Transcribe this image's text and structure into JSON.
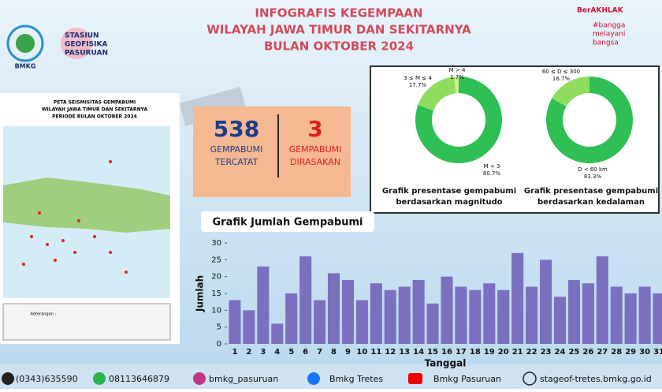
{
  "header": {
    "title_lines": [
      "INFOGRAFIS KEGEMPAAN",
      "WILAYAH JAWA TIMUR DAN SEKITARNYA",
      "BULAN OKTOBER 2024"
    ],
    "station_lines": [
      "STASIUN",
      "GEOFISIKA",
      "PASURUAN"
    ],
    "bmkg": "BMKG",
    "berakhlak": "BerAKHLAK",
    "slogan": [
      "#bangga",
      "melayani",
      "bangsa"
    ]
  },
  "map": {
    "title_lines": [
      "PETA SEISMISITAS GEMPABUMI",
      "WILAYAH JAWA TIMUR DAN SEKITARNYA",
      "PERIODE BULAN OKTOBER 2024"
    ],
    "legend": "Keterangan :"
  },
  "stats": [
    {
      "value": 538,
      "label": [
        "GEMPABUMI",
        "TERCATAT"
      ]
    },
    {
      "value": 3,
      "label": [
        "GEMPABUMI",
        "DIRASAKAN"
      ]
    }
  ],
  "chart_data": [
    {
      "type": "bar",
      "title": "Grafik Jumlah Gempabumi",
      "x_label": "Tanggal",
      "y_label": "Jumlah",
      "color": "#7b70bf",
      "categories": [
        "1",
        "2",
        "3",
        "4",
        "5",
        "6",
        "7",
        "8",
        "9",
        "10",
        "11",
        "12",
        "13",
        "14",
        "15",
        "16",
        "17",
        "18",
        "19",
        "20",
        "21",
        "22",
        "23",
        "24",
        "25",
        "26",
        "27",
        "28",
        "29",
        "30",
        "31"
      ],
      "values": [
        13,
        10,
        23,
        6,
        15,
        26,
        13,
        21,
        19,
        13,
        18,
        16,
        17,
        19,
        12,
        20,
        17,
        16,
        18,
        16,
        27,
        17,
        25,
        14,
        19,
        18,
        26,
        17,
        15,
        17,
        15
      ],
      "ylim": [
        0,
        30
      ],
      "yticks": [
        0,
        5,
        10,
        15,
        20,
        25,
        30
      ]
    },
    {
      "type": "pie",
      "title": [
        "Grafik presentase gempabumi",
        "berdasarkan magnitudo"
      ],
      "categories": [
        "M < 3",
        "3 ≤ M ≤ 4",
        "M > 4"
      ],
      "values": [
        80.7,
        17.7,
        1.7
      ],
      "value_labels": [
        "80.7%",
        "17.7%",
        "1.7%"
      ],
      "colors": [
        "#2fbf55",
        "#8fdc5e",
        "#cdef8c"
      ]
    },
    {
      "type": "pie",
      "title": [
        "Grafik presentase gempabumi",
        "berdasarkan kedalaman"
      ],
      "categories": [
        "D < 60 km",
        "60 ≤ D ≤ 300"
      ],
      "values": [
        83.3,
        16.7
      ],
      "value_labels": [
        "83.3%",
        "16.7%"
      ],
      "colors": [
        "#2fbf55",
        "#8fdc5e"
      ]
    }
  ],
  "footer": [
    "(0343)635590",
    "08113646879",
    "bmkg_pasuruan",
    "Bmkg Tretes",
    "Bmkg Pasuruan",
    "stageof-tretes.bmkg.go.id"
  ]
}
